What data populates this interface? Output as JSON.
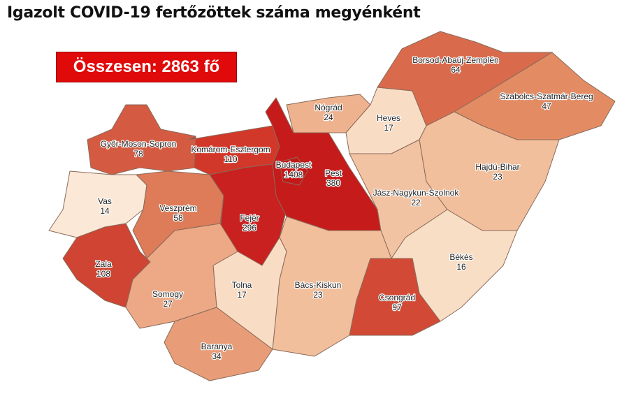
{
  "title": "Igazolt COVID-19 fertőzöttek száma megyénként",
  "total_label": "Összesen: 2863 fő",
  "total_box_color": "#e00a0a",
  "counties": [
    {
      "name": "Győr-Moson-Sopron",
      "value": "78",
      "color": "#d45b42"
    },
    {
      "name": "Komárom-Esztergom",
      "value": "110",
      "color": "#d2382a"
    },
    {
      "name": "Vas",
      "value": "14",
      "color": "#fce8d6"
    },
    {
      "name": "Veszprém",
      "value": "58",
      "color": "#de7b58"
    },
    {
      "name": "Zala",
      "value": "108",
      "color": "#cf4432"
    },
    {
      "name": "Fejér",
      "value": "296",
      "color": "#c92020"
    },
    {
      "name": "Pest",
      "value": "380",
      "color": "#c61b1b"
    },
    {
      "name": "Budapest",
      "value": "1408",
      "color": "#c41818"
    },
    {
      "name": "Nógrád",
      "value": "24",
      "color": "#eeb28e"
    },
    {
      "name": "Heves",
      "value": "17",
      "color": "#f9dcc4"
    },
    {
      "name": "Borsod-Abaúj-Zemplén",
      "value": "64",
      "color": "#d96b4c"
    },
    {
      "name": "Szabolcs-Szatmár-Bereg",
      "value": "47",
      "color": "#e38c64"
    },
    {
      "name": "Hajdú-Bihar",
      "value": "23",
      "color": "#f1bf9c"
    },
    {
      "name": "Jász-Nagykun-Szolnok",
      "value": "22",
      "color": "#f2c3a2"
    },
    {
      "name": "Békés",
      "value": "16",
      "color": "#f9dec6"
    },
    {
      "name": "Csongrád",
      "value": "97",
      "color": "#d24a36"
    },
    {
      "name": "Bács-Kiskun",
      "value": "23",
      "color": "#f1bf9c"
    },
    {
      "name": "Tolna",
      "value": "17",
      "color": "#f9dcc4"
    },
    {
      "name": "Somogy",
      "value": "27",
      "color": "#eda986"
    },
    {
      "name": "Baranya",
      "value": "34",
      "color": "#e89d78"
    }
  ]
}
